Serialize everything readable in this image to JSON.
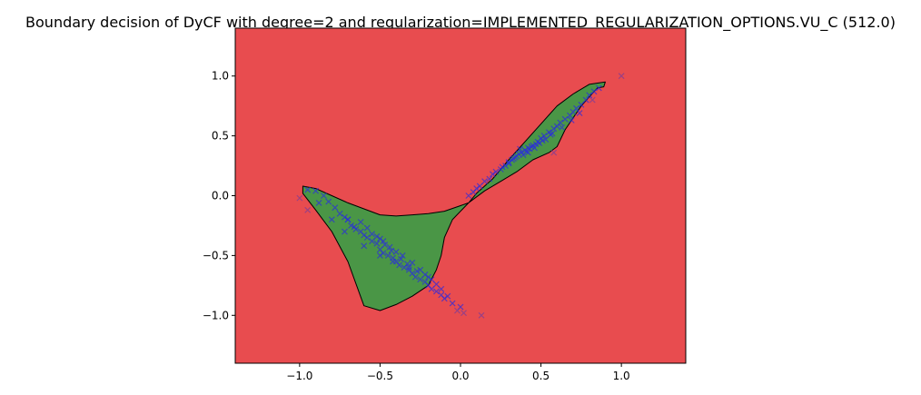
{
  "chart_data": {
    "type": "scatter",
    "title": "Boundary decision of DyCF with degree=2 and regularization=IMPLEMENTED_REGULARIZATION_OPTIONS.VU_C (512.0)",
    "xlabel": "",
    "ylabel": "",
    "xlim": [
      -1.4,
      1.4
    ],
    "ylim": [
      -1.4,
      1.4
    ],
    "xticks": [
      -1.0,
      -0.5,
      0.0,
      0.5,
      1.0
    ],
    "xtick_labels": [
      "−1.0",
      "−0.5",
      "0.0",
      "0.5",
      "1.0"
    ],
    "yticks": [
      1.0,
      0.5,
      0.0,
      -0.5,
      -1.0
    ],
    "ytick_labels": [
      "1.0",
      "0.5",
      "0.0",
      "−0.5",
      "−1.0"
    ],
    "grid": false,
    "colors": {
      "outside_region": "#e84c4f",
      "inside_region": "#4a9646",
      "boundary": "#000000",
      "points": "#2a2ae0",
      "outlier_points": "#7a3c9a"
    },
    "marker": "x",
    "inside_region_polygon": {
      "x": [
        -0.98,
        -0.9,
        -0.8,
        -0.7,
        -0.6,
        -0.5,
        -0.4,
        -0.3,
        -0.2,
        -0.1,
        0.05,
        0.1,
        0.2,
        0.3,
        0.4,
        0.5,
        0.6,
        0.7,
        0.8,
        0.9,
        0.89,
        0.85,
        0.75,
        0.65,
        0.6,
        0.55,
        0.45,
        0.35,
        0.25,
        0.15,
        0.05,
        -0.05,
        -0.1,
        -0.12,
        -0.15,
        -0.2,
        -0.3,
        -0.4,
        -0.5,
        -0.6,
        -0.7,
        -0.8,
        -0.9,
        -0.98
      ],
      "y": [
        0.08,
        0.06,
        0.0,
        -0.06,
        -0.11,
        -0.16,
        -0.17,
        -0.16,
        -0.15,
        -0.13,
        -0.06,
        0.02,
        0.14,
        0.3,
        0.45,
        0.6,
        0.75,
        0.85,
        0.93,
        0.95,
        0.91,
        0.9,
        0.75,
        0.55,
        0.41,
        0.36,
        0.3,
        0.2,
        0.12,
        0.04,
        -0.06,
        -0.2,
        -0.35,
        -0.5,
        -0.62,
        -0.75,
        -0.84,
        -0.91,
        -0.96,
        -0.92,
        -0.55,
        -0.3,
        -0.12,
        0.02
      ]
    },
    "series": [
      {
        "x": [
          -0.95,
          -0.9,
          -0.85,
          -0.82,
          -0.78,
          -0.75,
          -0.72,
          -0.7,
          -0.68,
          -0.65,
          -0.62,
          -0.6,
          -0.58,
          -0.55,
          -0.52,
          -0.5,
          -0.48,
          -0.45,
          -0.42,
          -0.4,
          -0.38,
          -0.35,
          -0.32,
          -0.3,
          -0.28,
          -0.25,
          -0.22,
          -0.2,
          -0.18,
          -0.15,
          -0.12,
          -0.1,
          -0.05,
          0.0,
          -0.62,
          -0.58,
          -0.52,
          -0.47,
          -0.43,
          -0.37,
          -0.33,
          -0.27,
          -0.48,
          -0.44,
          -0.4,
          -0.36,
          -0.3,
          -0.25,
          -0.2,
          -0.15,
          -0.55,
          -0.5,
          -0.66,
          -0.7,
          -0.12,
          -0.08,
          -0.22,
          -0.18,
          -0.32,
          -0.42,
          -0.5,
          -0.6,
          -0.72,
          -0.8,
          -0.88,
          0.05,
          0.1,
          0.15,
          0.2,
          0.25,
          0.3,
          0.32,
          0.35,
          0.38,
          0.4,
          0.42,
          0.45,
          0.48,
          0.5,
          0.52,
          0.55,
          0.58,
          0.6,
          0.62,
          0.65,
          0.68,
          0.7,
          0.72,
          0.75,
          0.78,
          0.8,
          0.83,
          0.86,
          0.22,
          0.28,
          0.33,
          0.36,
          0.41,
          0.44,
          0.47,
          0.53,
          0.57,
          0.18,
          0.12,
          0.08,
          0.26,
          0.3,
          0.34,
          0.39,
          0.43,
          0.49,
          0.56,
          0.63,
          0.69,
          0.74,
          0.37,
          0.42,
          0.46,
          0.51
        ],
        "y": [
          0.05,
          0.04,
          0.0,
          -0.05,
          -0.1,
          -0.15,
          -0.18,
          -0.2,
          -0.25,
          -0.28,
          -0.3,
          -0.33,
          -0.35,
          -0.38,
          -0.4,
          -0.45,
          -0.48,
          -0.5,
          -0.52,
          -0.55,
          -0.58,
          -0.6,
          -0.62,
          -0.65,
          -0.68,
          -0.7,
          -0.72,
          -0.75,
          -0.78,
          -0.8,
          -0.83,
          -0.86,
          -0.9,
          -0.93,
          -0.22,
          -0.27,
          -0.34,
          -0.41,
          -0.46,
          -0.53,
          -0.57,
          -0.63,
          -0.38,
          -0.43,
          -0.47,
          -0.5,
          -0.56,
          -0.62,
          -0.68,
          -0.74,
          -0.32,
          -0.36,
          -0.26,
          -0.2,
          -0.78,
          -0.84,
          -0.66,
          -0.7,
          -0.6,
          -0.55,
          -0.5,
          -0.42,
          -0.3,
          -0.2,
          -0.06,
          0.0,
          0.06,
          0.12,
          0.18,
          0.22,
          0.28,
          0.3,
          0.33,
          0.36,
          0.38,
          0.4,
          0.42,
          0.45,
          0.48,
          0.5,
          0.53,
          0.56,
          0.58,
          0.61,
          0.64,
          0.67,
          0.7,
          0.73,
          0.76,
          0.8,
          0.84,
          0.87,
          0.9,
          0.2,
          0.25,
          0.31,
          0.35,
          0.37,
          0.41,
          0.43,
          0.47,
          0.52,
          0.14,
          0.08,
          0.03,
          0.24,
          0.27,
          0.32,
          0.34,
          0.39,
          0.44,
          0.51,
          0.57,
          0.63,
          0.69,
          0.39,
          0.36,
          0.4,
          0.46
        ]
      },
      {
        "x": [
          1.0,
          -1.0,
          -0.95,
          0.13,
          0.58,
          0.82,
          0.02,
          -0.02
        ],
        "y": [
          1.0,
          -0.02,
          -0.12,
          -1.0,
          0.36,
          0.8,
          -0.98,
          -0.96
        ]
      }
    ]
  }
}
